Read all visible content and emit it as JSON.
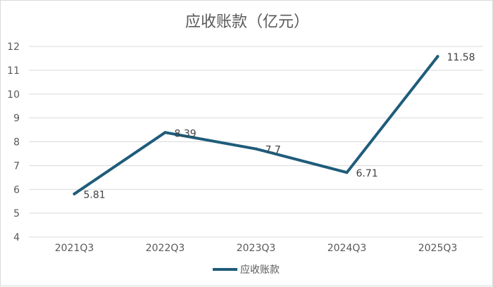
{
  "chart_data": {
    "type": "line",
    "title": "应收账款（亿元）",
    "categories": [
      "2021Q3",
      "2022Q3",
      "2023Q3",
      "2024Q3",
      "2025Q3"
    ],
    "series": [
      {
        "name": "应收账款",
        "values": [
          5.81,
          8.39,
          7.7,
          6.71,
          11.58
        ],
        "labels": [
          "5.81",
          "8.39",
          "7.7",
          "6.71",
          "11.58"
        ]
      }
    ],
    "ylim": [
      4,
      12
    ],
    "yticks": [
      4,
      5,
      6,
      7,
      8,
      9,
      10,
      11,
      12
    ],
    "grid": true,
    "legend": "bottom",
    "colors": {
      "series": "#1f5c7a",
      "grid": "#d9d9d9",
      "text": "#595959"
    }
  }
}
